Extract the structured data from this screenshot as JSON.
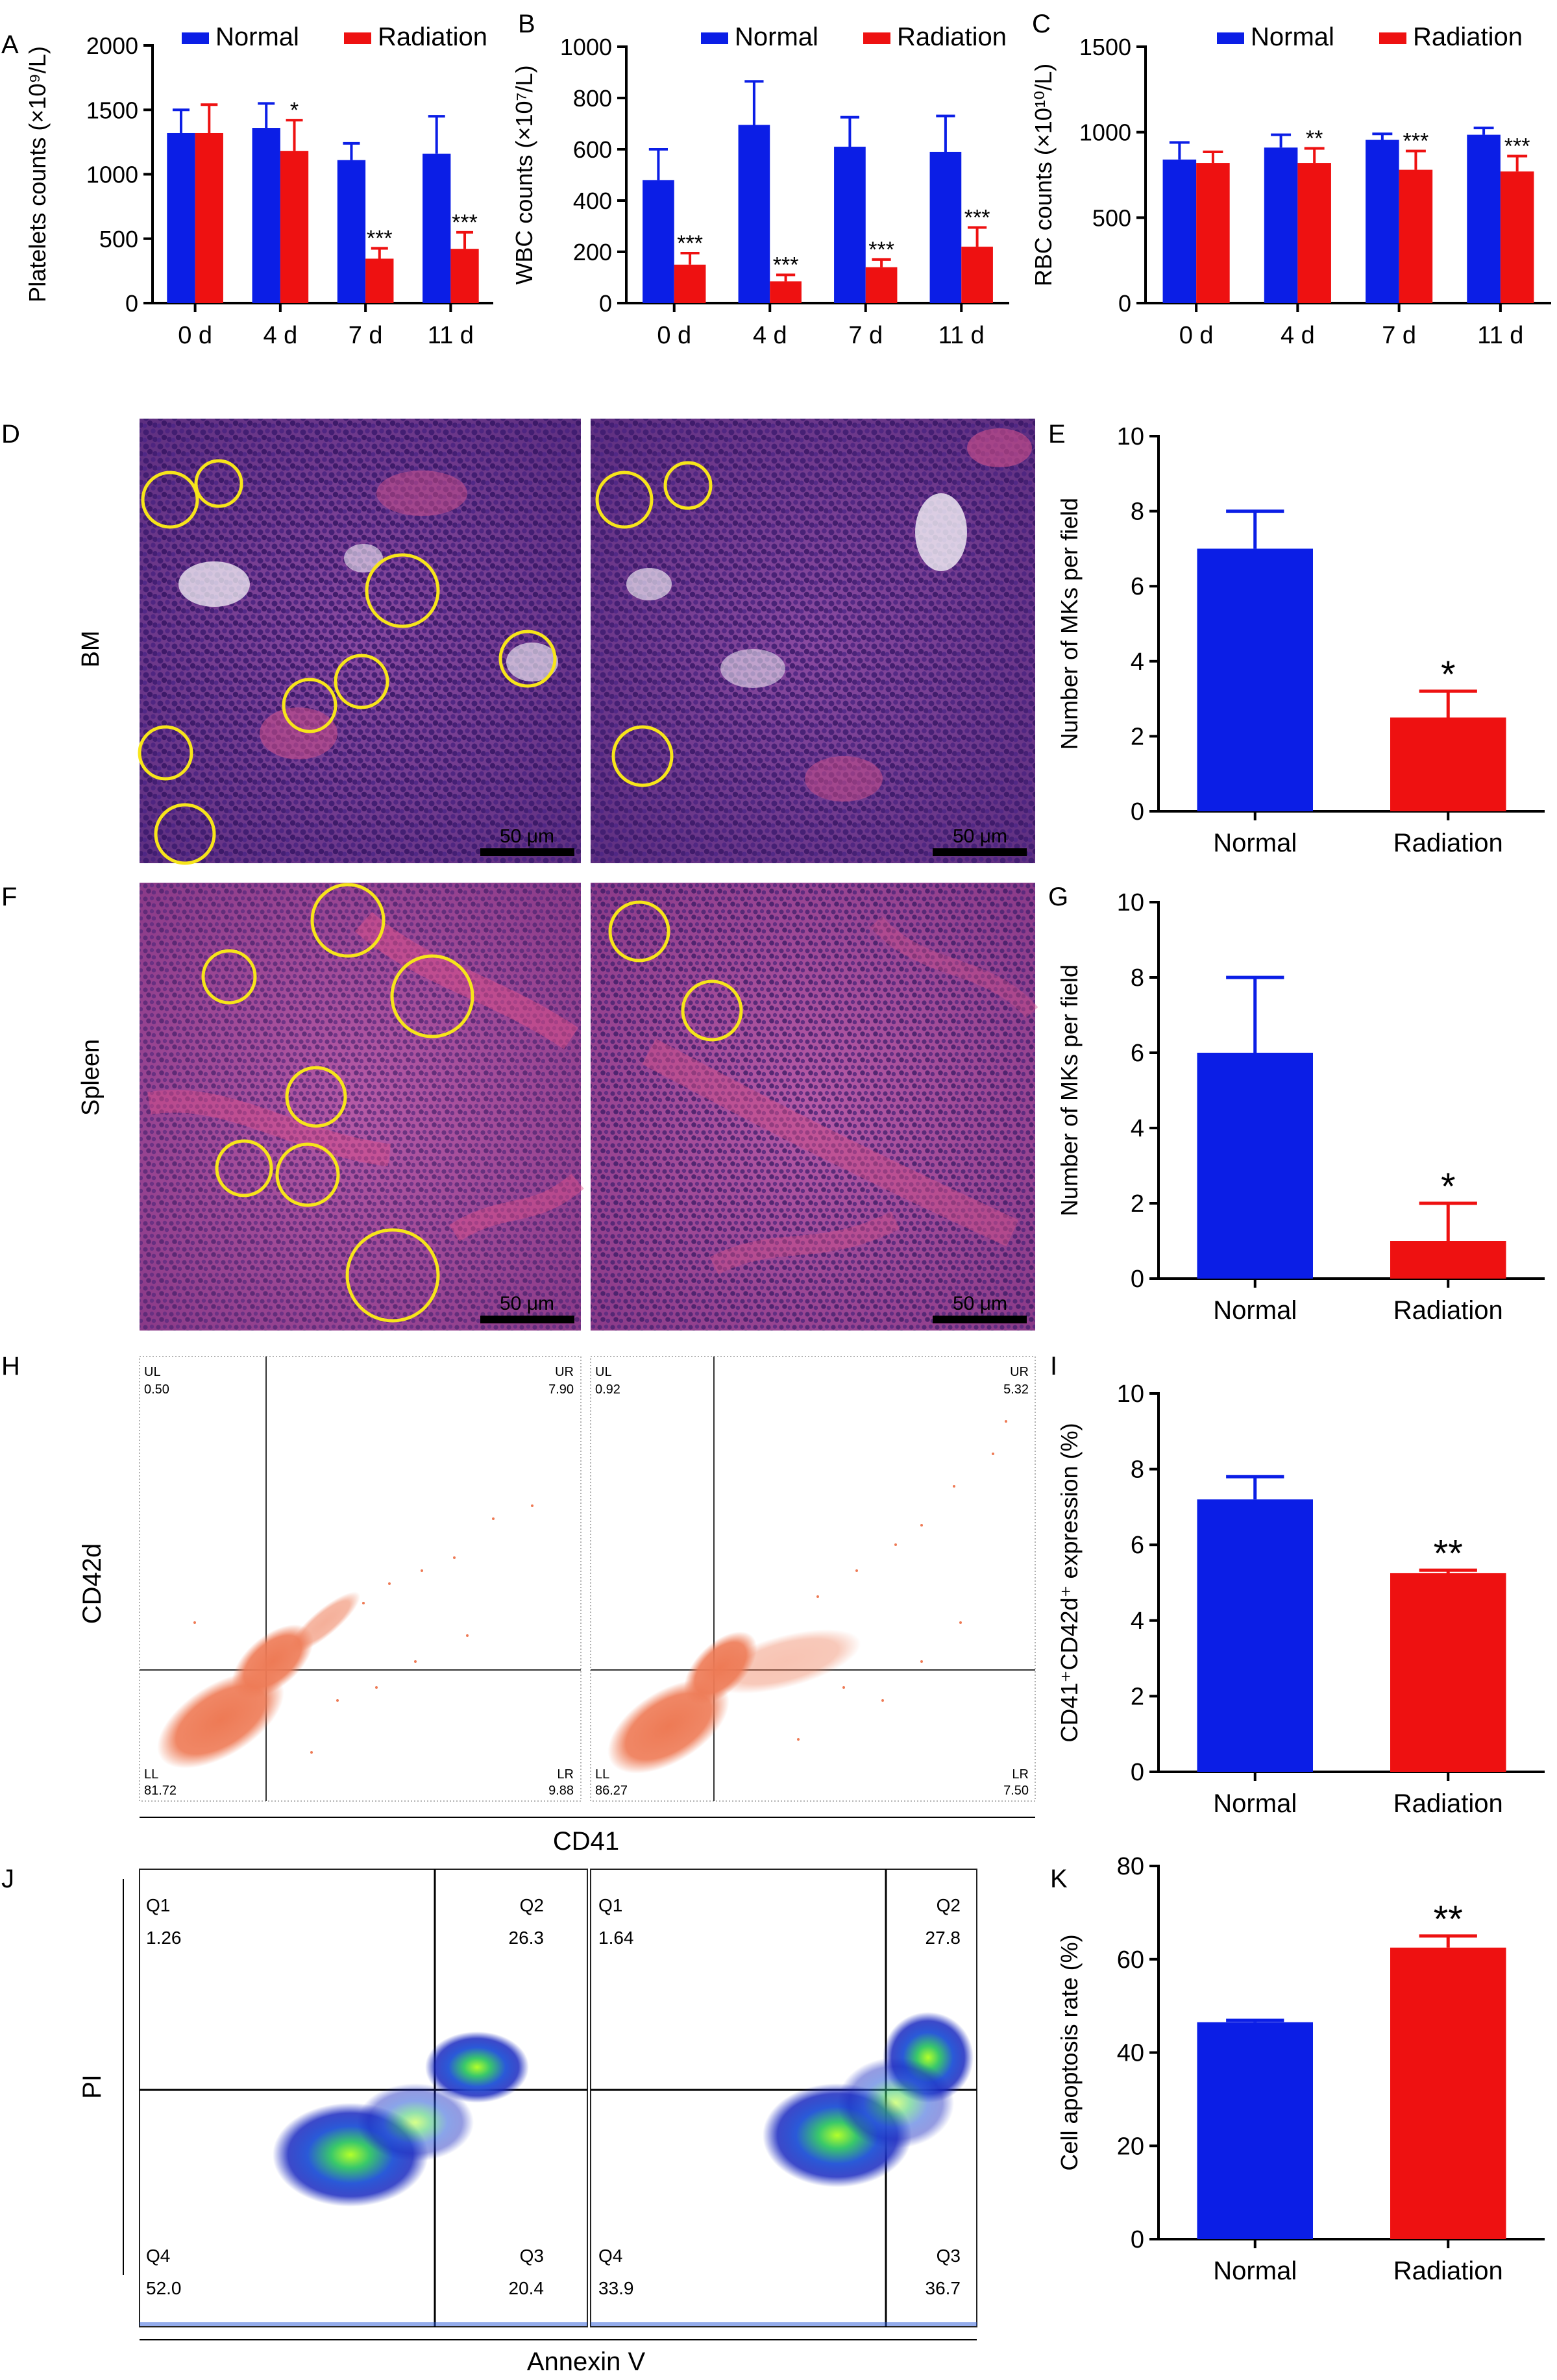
{
  "colors": {
    "normal": "#0b1ee6",
    "radiation": "#ee1111",
    "axis": "#000000",
    "he_bm": "#7a3f92",
    "he_spleen": "#a44a96",
    "circle": "#f7e51a",
    "fc_orange": "#ee7a55"
  },
  "legend": {
    "normal": "Normal",
    "radiation": "Radiation"
  },
  "panels": {
    "A": "A",
    "B": "B",
    "C": "C",
    "D": "D",
    "E": "E",
    "F": "F",
    "G": "G",
    "H": "H",
    "I": "I",
    "J": "J",
    "K": "K"
  },
  "histology": {
    "bm_label": "BM",
    "spleen_label": "Spleen",
    "scale_bar": "50 μm"
  },
  "flow_cd41": {
    "y_label": "CD42d",
    "x_label": "CD41",
    "left": {
      "UL_label": "UL",
      "UL": "0.50",
      "UR_label": "UR",
      "UR": "7.90",
      "LL_label": "LL",
      "LL": "81.72",
      "LR_label": "LR",
      "LR": "9.88"
    },
    "right": {
      "UL_label": "UL",
      "UL": "0.92",
      "UR_label": "UR",
      "UR": "5.32",
      "LL_label": "LL",
      "LL": "86.27",
      "LR_label": "LR",
      "LR": "7.50"
    }
  },
  "flow_annexin": {
    "y_label": "PI",
    "x_label": "Annexin V",
    "left": {
      "Q1_label": "Q1",
      "Q1": "1.26",
      "Q2_label": "Q2",
      "Q2": "26.3",
      "Q4_label": "Q4",
      "Q4": "52.0",
      "Q3_label": "Q3",
      "Q3": "20.4"
    },
    "right": {
      "Q1_label": "Q1",
      "Q1": "1.64",
      "Q2_label": "Q2",
      "Q2": "27.8",
      "Q4_label": "Q4",
      "Q4": "33.9",
      "Q3_label": "Q3",
      "Q3": "36.7"
    }
  },
  "chart_data": [
    {
      "id": "A",
      "type": "bar",
      "categories": [
        "0 d",
        "4 d",
        "7 d",
        "11 d"
      ],
      "ylabel": "Platelets counts (×10⁹/L)",
      "ylim": [
        0,
        2000
      ],
      "yticks": [
        0,
        500,
        1000,
        1500,
        2000
      ],
      "series": [
        {
          "name": "Normal",
          "values": [
            1320,
            1360,
            1110,
            1160
          ],
          "errors": [
            180,
            190,
            130,
            290
          ]
        },
        {
          "name": "Radiation",
          "values": [
            1320,
            1180,
            345,
            420
          ],
          "errors": [
            220,
            240,
            80,
            130
          ]
        }
      ],
      "annotations": [
        "",
        "*",
        "***",
        "***"
      ]
    },
    {
      "id": "B",
      "type": "bar",
      "categories": [
        "0 d",
        "4 d",
        "7 d",
        "11 d"
      ],
      "ylabel": "WBC counts (×10⁷/L)",
      "ylim": [
        0,
        1000
      ],
      "yticks": [
        0,
        200,
        400,
        600,
        800,
        1000
      ],
      "series": [
        {
          "name": "Normal",
          "values": [
            480,
            695,
            610,
            590
          ],
          "errors": [
            120,
            170,
            115,
            140
          ]
        },
        {
          "name": "Radiation",
          "values": [
            150,
            85,
            140,
            220
          ],
          "errors": [
            45,
            25,
            30,
            75
          ]
        }
      ],
      "annotations": [
        "***",
        "***",
        "***",
        "***"
      ]
    },
    {
      "id": "C",
      "type": "bar",
      "categories": [
        "0 d",
        "4 d",
        "7 d",
        "11 d"
      ],
      "ylabel": "RBC counts (×10¹⁰/L)",
      "ylim": [
        0,
        1500
      ],
      "yticks": [
        0,
        500,
        1000,
        1500
      ],
      "series": [
        {
          "name": "Normal",
          "values": [
            840,
            910,
            955,
            985
          ],
          "errors": [
            100,
            75,
            35,
            40
          ]
        },
        {
          "name": "Radiation",
          "values": [
            820,
            820,
            780,
            770
          ],
          "errors": [
            65,
            85,
            110,
            90
          ]
        }
      ],
      "annotations": [
        "",
        "**",
        "***",
        "***"
      ]
    },
    {
      "id": "E",
      "type": "bar",
      "categories": [
        "Normal",
        "Radiation"
      ],
      "ylabel": "Number of MKs per field",
      "ylim": [
        0,
        10
      ],
      "yticks": [
        0,
        2,
        4,
        6,
        8,
        10
      ],
      "values": [
        7,
        2.5
      ],
      "errors": [
        1,
        0.7
      ],
      "annotations": [
        "",
        "*"
      ]
    },
    {
      "id": "G",
      "type": "bar",
      "categories": [
        "Normal",
        "Radiation"
      ],
      "ylabel": "Number of MKs per field",
      "ylim": [
        0,
        10
      ],
      "yticks": [
        0,
        2,
        4,
        6,
        8,
        10
      ],
      "values": [
        6,
        1
      ],
      "errors": [
        2,
        1
      ],
      "annotations": [
        "",
        "*"
      ]
    },
    {
      "id": "I",
      "type": "bar",
      "categories": [
        "Normal",
        "Radiation"
      ],
      "ylabel": "CD41⁺CD42d⁺ expression (%)",
      "ylim": [
        0,
        10
      ],
      "yticks": [
        0,
        2,
        4,
        6,
        8,
        10
      ],
      "values": [
        7.2,
        5.25
      ],
      "errors": [
        0.6,
        0.08
      ],
      "annotations": [
        "",
        "**"
      ]
    },
    {
      "id": "K",
      "type": "bar",
      "categories": [
        "Normal",
        "Radiation"
      ],
      "ylabel": "Cell apoptosis rate (%)",
      "ylim": [
        0,
        80
      ],
      "yticks": [
        0,
        20,
        40,
        60,
        80
      ],
      "values": [
        46.5,
        62.5
      ],
      "errors": [
        0.4,
        2.5
      ],
      "annotations": [
        "",
        "**"
      ]
    }
  ]
}
